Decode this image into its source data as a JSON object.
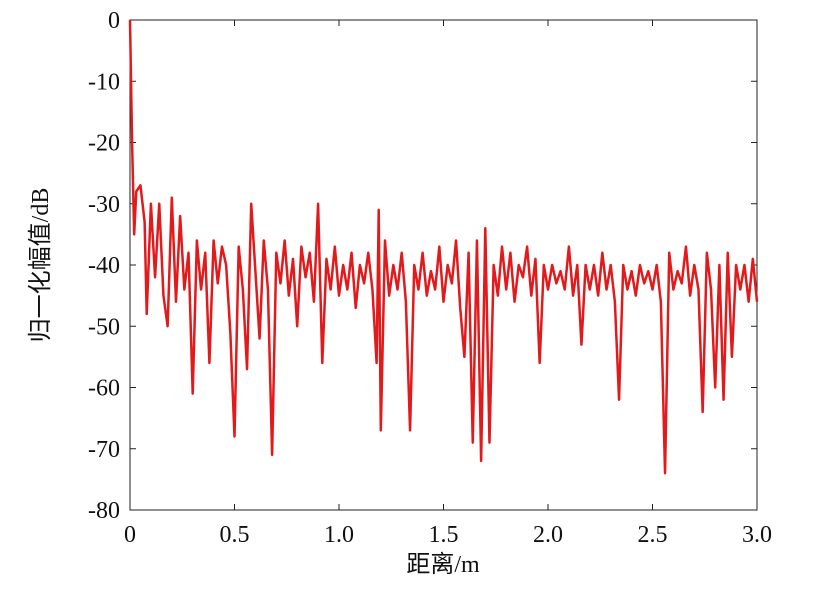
{
  "chart_data": {
    "type": "line",
    "xlabel": "距离/m",
    "ylabel": "归一化幅值/dB",
    "xlim": [
      0,
      3
    ],
    "ylim": [
      -80,
      0
    ],
    "xticks": [
      0,
      0.5,
      {
        "value": 1,
        "label": "1.0"
      },
      1.5,
      {
        "value": 2,
        "label": "2.0"
      },
      2.5,
      {
        "value": 3,
        "label": "3.0"
      }
    ],
    "yticks": [
      0,
      -10,
      -20,
      -30,
      -40,
      -50,
      -60,
      -70,
      -80
    ],
    "series": [
      {
        "color": "#e31a1c",
        "x": [
          0,
          0.01,
          0.02,
          0.03,
          0.05,
          0.07,
          0.08,
          0.1,
          0.12,
          0.14,
          0.16,
          0.18,
          0.2,
          0.22,
          0.24,
          0.26,
          0.28,
          0.3,
          0.32,
          0.34,
          0.36,
          0.38,
          0.4,
          0.42,
          0.44,
          0.46,
          0.48,
          0.5,
          0.52,
          0.54,
          0.56,
          0.58,
          0.6,
          0.62,
          0.64,
          0.66,
          0.68,
          0.7,
          0.72,
          0.74,
          0.76,
          0.78,
          0.8,
          0.82,
          0.84,
          0.86,
          0.88,
          0.9,
          0.92,
          0.94,
          0.96,
          0.98,
          1.0,
          1.02,
          1.04,
          1.06,
          1.08,
          1.1,
          1.12,
          1.14,
          1.16,
          1.18,
          1.19,
          1.2,
          1.22,
          1.24,
          1.26,
          1.28,
          1.3,
          1.32,
          1.34,
          1.36,
          1.38,
          1.4,
          1.42,
          1.44,
          1.46,
          1.48,
          1.5,
          1.52,
          1.54,
          1.56,
          1.58,
          1.6,
          1.62,
          1.64,
          1.66,
          1.68,
          1.7,
          1.72,
          1.74,
          1.76,
          1.78,
          1.8,
          1.82,
          1.84,
          1.86,
          1.88,
          1.9,
          1.92,
          1.94,
          1.96,
          1.98,
          2.0,
          2.02,
          2.04,
          2.06,
          2.08,
          2.1,
          2.12,
          2.14,
          2.16,
          2.18,
          2.2,
          2.22,
          2.24,
          2.26,
          2.28,
          2.3,
          2.32,
          2.34,
          2.36,
          2.38,
          2.4,
          2.42,
          2.44,
          2.46,
          2.48,
          2.5,
          2.52,
          2.54,
          2.56,
          2.58,
          2.6,
          2.62,
          2.64,
          2.66,
          2.68,
          2.7,
          2.72,
          2.74,
          2.76,
          2.78,
          2.8,
          2.82,
          2.84,
          2.86,
          2.88,
          2.9,
          2.92,
          2.94,
          2.96,
          2.98,
          3.0
        ],
        "values": [
          0,
          -20,
          -35,
          -28,
          -27,
          -33,
          -48,
          -30,
          -42,
          -30,
          -45,
          -50,
          -29,
          -46,
          -32,
          -44,
          -38,
          -61,
          -36,
          -44,
          -38,
          -56,
          -36,
          -43,
          -37,
          -40,
          -51,
          -68,
          -37,
          -44,
          -57,
          -30,
          -41,
          -52,
          -36,
          -44,
          -71,
          -38,
          -43,
          -36,
          -45,
          -39,
          -50,
          -37,
          -42,
          -38,
          -46,
          -30,
          -56,
          -39,
          -44,
          -37,
          -45,
          -40,
          -44,
          -38,
          -47,
          -40,
          -43,
          -38,
          -44,
          -56,
          -31,
          -67,
          -36,
          -45,
          -40,
          -44,
          -38,
          -46,
          -67,
          -40,
          -44,
          -38,
          -45,
          -41,
          -44,
          -37,
          -46,
          -40,
          -43,
          -36,
          -47,
          -55,
          -38,
          -69,
          -36,
          -72,
          -34,
          -69,
          -40,
          -45,
          -37,
          -44,
          -38,
          -46,
          -40,
          -42,
          -37,
          -45,
          -39,
          -56,
          -40,
          -44,
          -40,
          -43,
          -41,
          -44,
          -37,
          -45,
          -40,
          -53,
          -40,
          -44,
          -40,
          -45,
          -38,
          -44,
          -40,
          -46,
          -62,
          -40,
          -44,
          -41,
          -45,
          -40,
          -43,
          -41,
          -44,
          -40,
          -46,
          -74,
          -38,
          -44,
          -41,
          -43,
          -37,
          -45,
          -40,
          -44,
          -64,
          -38,
          -44,
          -60,
          -40,
          -62,
          -38,
          -55,
          -40,
          -44,
          -40,
          -46,
          -39,
          -46
        ]
      }
    ]
  }
}
